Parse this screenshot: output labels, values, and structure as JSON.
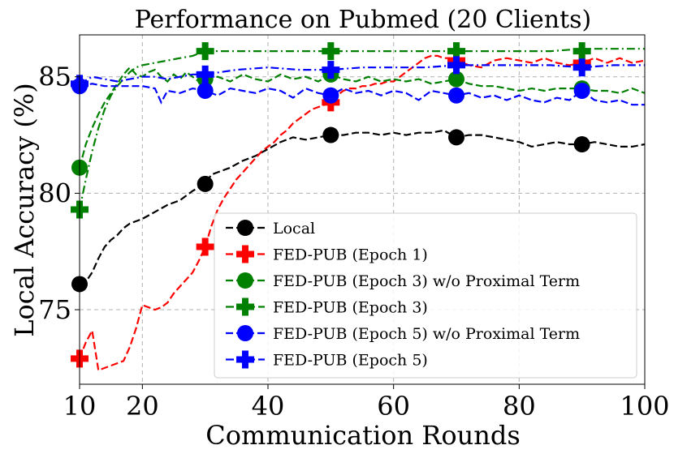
{
  "chart_data": {
    "type": "line",
    "title": "Performance on Pubmed (20 Clients)",
    "xlabel": "Communication Rounds",
    "ylabel": "Local Accuracy (%)",
    "xlim": [
      10,
      100
    ],
    "ylim": [
      71.8,
      86.8
    ],
    "xticks": [
      10,
      20,
      40,
      60,
      80,
      100
    ],
    "yticks": [
      75,
      80,
      85
    ],
    "grid": true,
    "legend_position": "lower-right",
    "series": [
      {
        "name": "Local",
        "color": "#000000",
        "dash": "dashed",
        "marker": "circle",
        "markers": [
          [
            10,
            76.1
          ],
          [
            30,
            80.4
          ],
          [
            50,
            82.5
          ],
          [
            70,
            82.4
          ],
          [
            90,
            82.1
          ]
        ],
        "points": [
          [
            10,
            76.1
          ],
          [
            11,
            76.2
          ],
          [
            12,
            76.6
          ],
          [
            13,
            77.2
          ],
          [
            14,
            77.7
          ],
          [
            15,
            78.0
          ],
          [
            16,
            78.2
          ],
          [
            17,
            78.5
          ],
          [
            18,
            78.7
          ],
          [
            20,
            78.9
          ],
          [
            22,
            79.2
          ],
          [
            24,
            79.5
          ],
          [
            26,
            79.7
          ],
          [
            28,
            80.1
          ],
          [
            30,
            80.4
          ],
          [
            31,
            80.8
          ],
          [
            32,
            80.9
          ],
          [
            34,
            81.1
          ],
          [
            36,
            81.4
          ],
          [
            38,
            81.6
          ],
          [
            40,
            81.9
          ],
          [
            42,
            82.2
          ],
          [
            44,
            82.4
          ],
          [
            46,
            82.3
          ],
          [
            48,
            82.4
          ],
          [
            50,
            82.5
          ],
          [
            52,
            82.5
          ],
          [
            54,
            82.6
          ],
          [
            56,
            82.6
          ],
          [
            58,
            82.5
          ],
          [
            60,
            82.6
          ],
          [
            62,
            82.5
          ],
          [
            64,
            82.6
          ],
          [
            66,
            82.6
          ],
          [
            68,
            82.7
          ],
          [
            70,
            82.4
          ],
          [
            72,
            82.5
          ],
          [
            74,
            82.5
          ],
          [
            76,
            82.4
          ],
          [
            78,
            82.3
          ],
          [
            80,
            82.2
          ],
          [
            82,
            82.0
          ],
          [
            84,
            82.1
          ],
          [
            86,
            82.2
          ],
          [
            88,
            82.1
          ],
          [
            90,
            82.1
          ],
          [
            92,
            82.2
          ],
          [
            94,
            82.1
          ],
          [
            96,
            82.0
          ],
          [
            98,
            82.0
          ],
          [
            100,
            82.1
          ]
        ]
      },
      {
        "name": "FED-PUB (Epoch 1)",
        "color": "#ff0000",
        "dash": "dashed",
        "marker": "plus",
        "markers": [
          [
            10,
            72.9
          ],
          [
            30,
            77.7
          ],
          [
            50,
            83.9
          ],
          [
            70,
            85.7
          ],
          [
            90,
            85.6
          ]
        ],
        "points": [
          [
            10,
            72.9
          ],
          [
            11,
            73.6
          ],
          [
            12,
            74.1
          ],
          [
            13,
            72.4
          ],
          [
            14,
            72.5
          ],
          [
            15,
            72.6
          ],
          [
            16,
            72.7
          ],
          [
            17,
            72.8
          ],
          [
            18,
            73.4
          ],
          [
            19,
            74.2
          ],
          [
            20,
            75.2
          ],
          [
            21,
            75.1
          ],
          [
            22,
            75.0
          ],
          [
            23,
            75.1
          ],
          [
            24,
            75.3
          ],
          [
            25,
            75.7
          ],
          [
            26,
            76.0
          ],
          [
            27,
            76.3
          ],
          [
            28,
            76.6
          ],
          [
            29,
            77.1
          ],
          [
            30,
            77.7
          ],
          [
            31,
            78.6
          ],
          [
            32,
            79.3
          ],
          [
            33,
            79.8
          ],
          [
            34,
            80.2
          ],
          [
            35,
            80.6
          ],
          [
            36,
            80.9
          ],
          [
            37,
            81.2
          ],
          [
            38,
            81.5
          ],
          [
            39,
            81.8
          ],
          [
            40,
            82.0
          ],
          [
            41,
            82.2
          ],
          [
            42,
            82.5
          ],
          [
            43,
            82.7
          ],
          [
            44,
            83.0
          ],
          [
            45,
            83.2
          ],
          [
            46,
            83.4
          ],
          [
            47,
            83.6
          ],
          [
            48,
            83.7
          ],
          [
            49,
            83.8
          ],
          [
            50,
            83.9
          ],
          [
            51,
            84.2
          ],
          [
            52,
            84.4
          ],
          [
            53,
            84.5
          ],
          [
            54,
            84.5
          ],
          [
            55,
            84.6
          ],
          [
            56,
            84.6
          ],
          [
            57,
            84.7
          ],
          [
            58,
            84.7
          ],
          [
            59,
            84.8
          ],
          [
            60,
            84.8
          ],
          [
            61,
            85.0
          ],
          [
            62,
            85.2
          ],
          [
            63,
            85.4
          ],
          [
            64,
            85.6
          ],
          [
            65,
            85.8
          ],
          [
            66,
            85.9
          ],
          [
            67,
            85.9
          ],
          [
            68,
            85.8
          ],
          [
            69,
            85.8
          ],
          [
            70,
            85.7
          ],
          [
            72,
            85.5
          ],
          [
            74,
            85.4
          ],
          [
            76,
            85.7
          ],
          [
            78,
            85.8
          ],
          [
            80,
            85.7
          ],
          [
            82,
            85.6
          ],
          [
            84,
            85.8
          ],
          [
            86,
            85.6
          ],
          [
            88,
            85.5
          ],
          [
            90,
            85.6
          ],
          [
            92,
            85.8
          ],
          [
            94,
            85.6
          ],
          [
            96,
            85.8
          ],
          [
            98,
            85.6
          ],
          [
            100,
            85.7
          ]
        ]
      },
      {
        "name": "FED-PUB (Epoch 3) w/o Proximal Term",
        "color": "#008000",
        "dash": "dashed",
        "marker": "circle",
        "markers": [
          [
            10,
            81.1
          ],
          [
            30,
            84.9
          ],
          [
            50,
            85.1
          ],
          [
            70,
            84.9
          ],
          [
            90,
            84.5
          ]
        ],
        "points": [
          [
            10,
            81.1
          ],
          [
            11,
            82.1
          ],
          [
            12,
            82.8
          ],
          [
            13,
            83.4
          ],
          [
            14,
            83.9
          ],
          [
            15,
            84.3
          ],
          [
            16,
            84.7
          ],
          [
            17,
            85.1
          ],
          [
            18,
            85.4
          ],
          [
            19,
            85.1
          ],
          [
            20,
            85.0
          ],
          [
            21,
            85.2
          ],
          [
            22,
            85.3
          ],
          [
            23,
            85.0
          ],
          [
            24,
            84.8
          ],
          [
            25,
            85.1
          ],
          [
            26,
            84.9
          ],
          [
            27,
            85.2
          ],
          [
            28,
            85.0
          ],
          [
            29,
            84.8
          ],
          [
            30,
            84.9
          ],
          [
            32,
            85.0
          ],
          [
            34,
            84.8
          ],
          [
            36,
            85.1
          ],
          [
            38,
            84.9
          ],
          [
            40,
            84.8
          ],
          [
            42,
            85.1
          ],
          [
            44,
            84.9
          ],
          [
            46,
            85.0
          ],
          [
            48,
            84.8
          ],
          [
            50,
            85.1
          ],
          [
            52,
            84.9
          ],
          [
            54,
            84.8
          ],
          [
            56,
            85.0
          ],
          [
            58,
            84.8
          ],
          [
            60,
            84.9
          ],
          [
            62,
            84.8
          ],
          [
            64,
            84.9
          ],
          [
            66,
            84.7
          ],
          [
            68,
            84.8
          ],
          [
            70,
            84.9
          ],
          [
            72,
            84.7
          ],
          [
            74,
            84.6
          ],
          [
            76,
            84.6
          ],
          [
            78,
            84.5
          ],
          [
            80,
            84.4
          ],
          [
            82,
            84.5
          ],
          [
            84,
            84.4
          ],
          [
            86,
            84.5
          ],
          [
            88,
            84.5
          ],
          [
            90,
            84.5
          ],
          [
            92,
            84.4
          ],
          [
            94,
            84.4
          ],
          [
            96,
            84.3
          ],
          [
            98,
            84.5
          ],
          [
            100,
            84.3
          ]
        ]
      },
      {
        "name": "FED-PUB (Epoch 3)",
        "color": "#008000",
        "dash": "dashdot",
        "marker": "plus",
        "markers": [
          [
            10,
            79.3
          ],
          [
            30,
            86.1
          ],
          [
            50,
            86.1
          ],
          [
            70,
            86.1
          ],
          [
            90,
            86.1
          ]
        ],
        "points": [
          [
            10,
            79.3
          ],
          [
            11,
            80.6
          ],
          [
            12,
            81.8
          ],
          [
            13,
            82.8
          ],
          [
            14,
            83.6
          ],
          [
            15,
            84.2
          ],
          [
            16,
            84.6
          ],
          [
            17,
            84.9
          ],
          [
            18,
            85.2
          ],
          [
            19,
            85.4
          ],
          [
            20,
            85.5
          ],
          [
            22,
            85.6
          ],
          [
            24,
            85.7
          ],
          [
            26,
            85.8
          ],
          [
            28,
            85.9
          ],
          [
            30,
            86.1
          ],
          [
            35,
            86.1
          ],
          [
            40,
            86.1
          ],
          [
            45,
            86.1
          ],
          [
            50,
            86.1
          ],
          [
            55,
            86.1
          ],
          [
            60,
            86.1
          ],
          [
            65,
            86.1
          ],
          [
            70,
            86.1
          ],
          [
            75,
            86.1
          ],
          [
            80,
            86.1
          ],
          [
            85,
            86.1
          ],
          [
            90,
            86.2
          ],
          [
            95,
            86.2
          ],
          [
            100,
            86.2
          ]
        ]
      },
      {
        "name": "FED-PUB (Epoch 5) w/o Proximal Term",
        "color": "#0000ff",
        "dash": "dashed",
        "marker": "circle",
        "markers": [
          [
            10,
            84.6
          ],
          [
            30,
            84.4
          ],
          [
            50,
            84.2
          ],
          [
            70,
            84.2
          ],
          [
            90,
            84.4
          ]
        ],
        "points": [
          [
            10,
            84.6
          ],
          [
            12,
            84.7
          ],
          [
            14,
            84.6
          ],
          [
            16,
            84.6
          ],
          [
            18,
            84.6
          ],
          [
            20,
            84.6
          ],
          [
            22,
            84.5
          ],
          [
            23,
            83.9
          ],
          [
            24,
            84.4
          ],
          [
            26,
            84.3
          ],
          [
            28,
            84.5
          ],
          [
            30,
            84.4
          ],
          [
            32,
            84.2
          ],
          [
            34,
            84.5
          ],
          [
            36,
            84.4
          ],
          [
            38,
            84.3
          ],
          [
            40,
            84.5
          ],
          [
            42,
            84.4
          ],
          [
            44,
            84.1
          ],
          [
            46,
            84.5
          ],
          [
            48,
            84.3
          ],
          [
            50,
            84.2
          ],
          [
            52,
            84.5
          ],
          [
            54,
            84.3
          ],
          [
            56,
            84.4
          ],
          [
            58,
            84.2
          ],
          [
            60,
            84.4
          ],
          [
            62,
            84.3
          ],
          [
            64,
            84.0
          ],
          [
            66,
            84.4
          ],
          [
            68,
            84.3
          ],
          [
            70,
            84.2
          ],
          [
            72,
            84.3
          ],
          [
            74,
            84.1
          ],
          [
            76,
            84.2
          ],
          [
            78,
            84.0
          ],
          [
            80,
            84.2
          ],
          [
            82,
            84.0
          ],
          [
            84,
            83.9
          ],
          [
            86,
            84.1
          ],
          [
            88,
            84.0
          ],
          [
            90,
            84.4
          ],
          [
            92,
            84.0
          ],
          [
            94,
            83.9
          ],
          [
            96,
            84.0
          ],
          [
            98,
            83.8
          ],
          [
            100,
            83.8
          ]
        ]
      },
      {
        "name": "FED-PUB (Epoch 5)",
        "color": "#0000ff",
        "dash": "dashdot",
        "marker": "plus",
        "markers": [
          [
            10,
            84.7
          ],
          [
            30,
            85.1
          ],
          [
            50,
            85.3
          ],
          [
            70,
            85.5
          ],
          [
            90,
            85.4
          ]
        ],
        "points": [
          [
            10,
            84.7
          ],
          [
            12,
            85.0
          ],
          [
            14,
            84.9
          ],
          [
            16,
            84.8
          ],
          [
            18,
            84.9
          ],
          [
            20,
            85.0
          ],
          [
            22,
            85.0
          ],
          [
            24,
            84.9
          ],
          [
            26,
            85.0
          ],
          [
            28,
            85.1
          ],
          [
            30,
            85.1
          ],
          [
            35,
            85.3
          ],
          [
            40,
            85.4
          ],
          [
            45,
            85.3
          ],
          [
            50,
            85.3
          ],
          [
            55,
            85.4
          ],
          [
            60,
            85.4
          ],
          [
            65,
            85.4
          ],
          [
            70,
            85.5
          ],
          [
            75,
            85.5
          ],
          [
            80,
            85.5
          ],
          [
            85,
            85.5
          ],
          [
            90,
            85.4
          ],
          [
            95,
            85.5
          ],
          [
            100,
            85.5
          ]
        ]
      }
    ]
  }
}
